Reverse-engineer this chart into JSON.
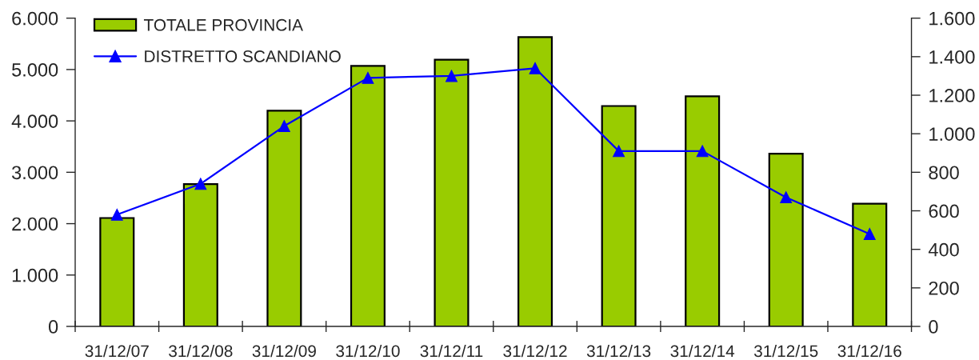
{
  "chart_data": {
    "type": "bar",
    "categories": [
      "31/12/07",
      "31/12/08",
      "31/12/09",
      "31/12/10",
      "31/12/11",
      "31/12/12",
      "31/12/13",
      "31/12/14",
      "31/12/15",
      "31/12/16"
    ],
    "series": [
      {
        "name": "TOTALE PROVINCIA",
        "color": "#99cc00",
        "values": [
          2110,
          2770,
          4200,
          5070,
          5190,
          5630,
          4290,
          4480,
          3360,
          2390
        ]
      },
      {
        "name": "DISTRETTO SCANDIANO",
        "type": "line",
        "axis": "y2",
        "color": "#0000ff",
        "marker": "triangle",
        "line_style": "solid",
        "values": [
          580,
          740,
          1040,
          1290,
          1300,
          1340,
          910,
          910,
          670,
          480
        ]
      }
    ],
    "ylim": [
      0,
      6000
    ],
    "yticks": [
      0,
      {
        "value": 1000,
        "label": "1.000"
      },
      {
        "value": 2000,
        "label": "2.000"
      },
      {
        "value": 3000,
        "label": "3.000"
      },
      {
        "value": 4000,
        "label": "4.000"
      },
      {
        "value": 5000,
        "label": "5.000"
      },
      {
        "value": 6000,
        "label": "6.000"
      }
    ],
    "y2lim": [
      0,
      1600
    ],
    "y2ticks": [
      0,
      200,
      400,
      600,
      800,
      {
        "value": 1000,
        "label": "1.000"
      },
      {
        "value": 1200,
        "label": "1.200"
      },
      {
        "value": 1400,
        "label": "1.400"
      },
      {
        "value": 1600,
        "label": "1.600"
      }
    ],
    "legend": "top left"
  }
}
